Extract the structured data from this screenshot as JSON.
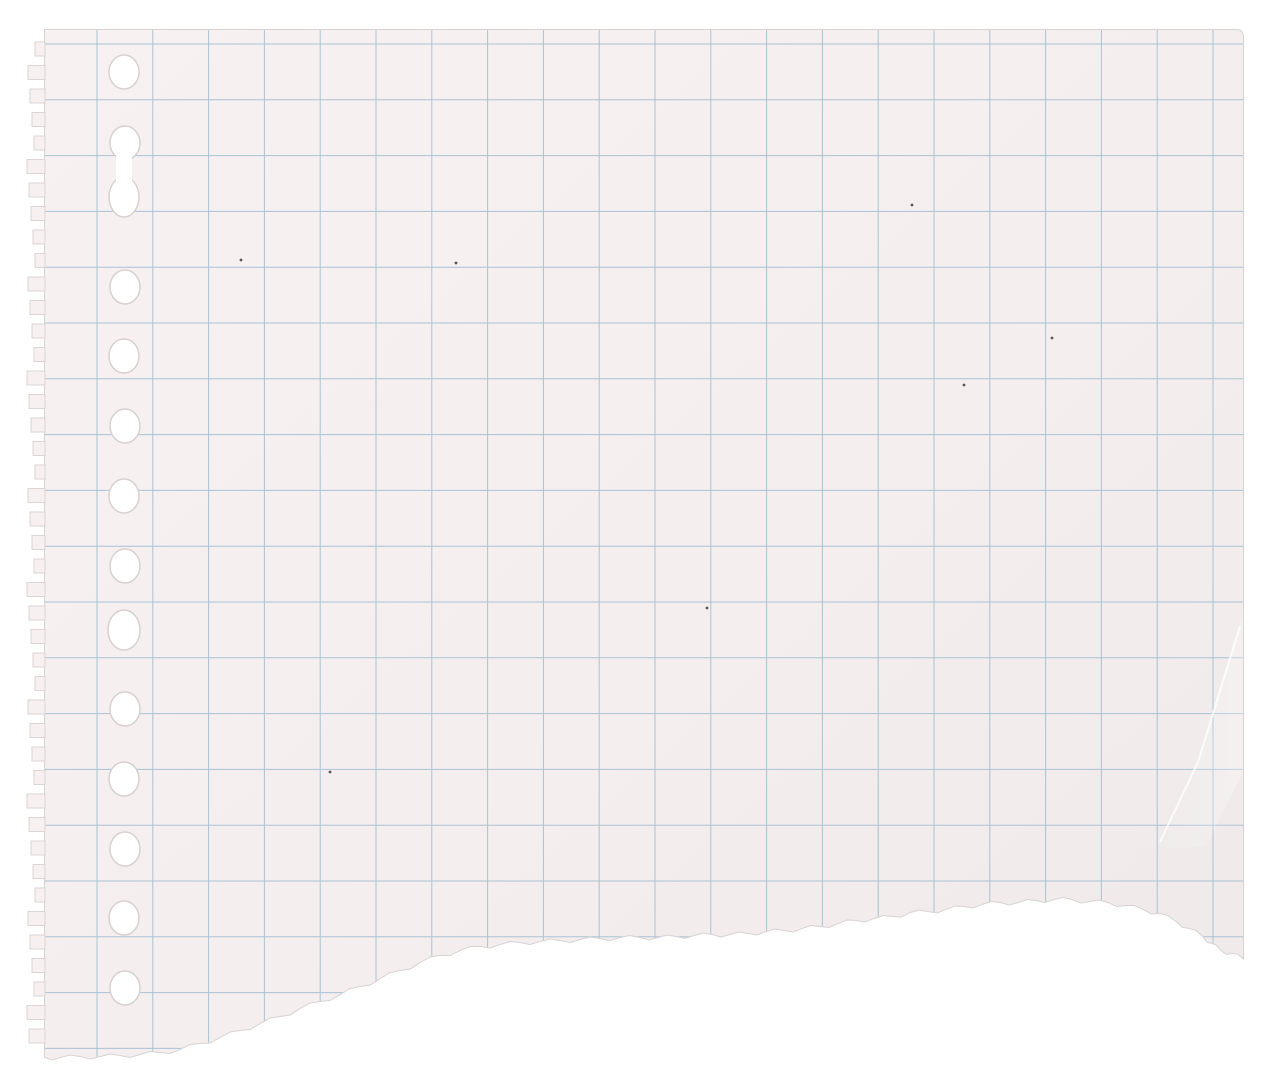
{
  "image": {
    "subject": "torn-graph-paper-sheet",
    "colors": {
      "background": "#ffffff",
      "paper": "#f6f0f0",
      "paper_shade": "#efe8e8",
      "grid_line": "#a9c3d4",
      "hole_fill": "#ffffff",
      "edge_shadow": "#d9d2d2"
    }
  }
}
